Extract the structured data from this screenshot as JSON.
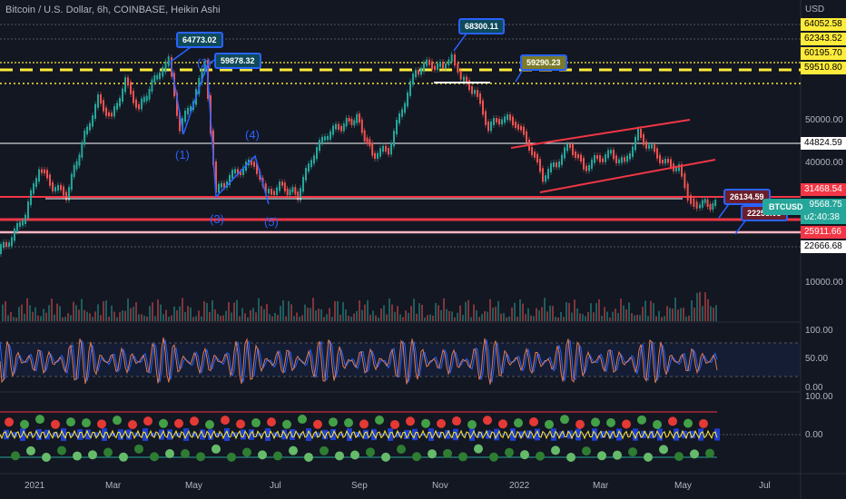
{
  "header": {
    "title": "Bitcoin / U.S. Dollar, 6h, COINBASE, Heikin Ashi",
    "currency": "USD"
  },
  "price_labels": [
    {
      "text": "64052.58",
      "bg": "#ffeb3b",
      "fg": "#000000"
    },
    {
      "text": "62343.52",
      "bg": "#ffeb3b",
      "fg": "#000000"
    },
    {
      "text": "60195.70",
      "bg": "#ffeb3b",
      "fg": "#000000"
    },
    {
      "text": "59510.80",
      "bg": "#ffeb3b",
      "fg": "#000000"
    },
    {
      "text": "44824.59",
      "bg": "#ffffff",
      "fg": "#000000"
    },
    {
      "text": "31468.54",
      "bg": "#f23645",
      "fg": "#ffffff"
    },
    {
      "text": "29568.75",
      "bg": "#26a69a",
      "fg": "#ffffff"
    },
    {
      "text": "02:40:38",
      "bg": "#26a69a",
      "fg": "#ffffff"
    },
    {
      "text": "25911.66",
      "bg": "#f23645",
      "fg": "#ffffff"
    },
    {
      "text": "22666.68",
      "bg": "#ffffff",
      "fg": "#000000"
    }
  ],
  "axis_ticks": [
    "50000.00",
    "40000.00",
    "10000.00",
    "100.00",
    "50.00",
    "0.00",
    "100.00",
    "0.00"
  ],
  "x_ticks": [
    "2021",
    "Mar",
    "May",
    "Jul",
    "Sep",
    "Nov",
    "2022",
    "Mar",
    "May",
    "Jul"
  ],
  "callouts": [
    {
      "text": "64773.02",
      "bg": "#0e4a5c",
      "border": "#2962ff",
      "fg": "#ffffff"
    },
    {
      "text": "59878.32",
      "bg": "#0e4a5c",
      "border": "#2962ff",
      "fg": "#ffffff"
    },
    {
      "text": "68300.11",
      "bg": "#0e4a5c",
      "border": "#2962ff",
      "fg": "#ffffff"
    },
    {
      "text": "59290.23",
      "bg": "#7a7a2a",
      "border": "#2962ff",
      "fg": "#ffffff"
    },
    {
      "text": "26134.59",
      "bg": "#6b1e2a",
      "border": "#2962ff",
      "fg": "#ffffff"
    },
    {
      "text": "22258.03",
      "bg": "#6b1e2a",
      "border": "#2962ff",
      "fg": "#ffffff"
    }
  ],
  "symbol_tag": "BTCUSD",
  "wave_labels": [
    "(1)",
    "(2)",
    "(3)",
    "(4)",
    "(5)"
  ],
  "colors": {
    "bg": "#131722",
    "up": "#26a69a",
    "down": "#ef5350",
    "wave": "#2962ff",
    "resistance": "#f23645",
    "level": "#ffeb3b",
    "stoch": "#e07b53"
  }
}
